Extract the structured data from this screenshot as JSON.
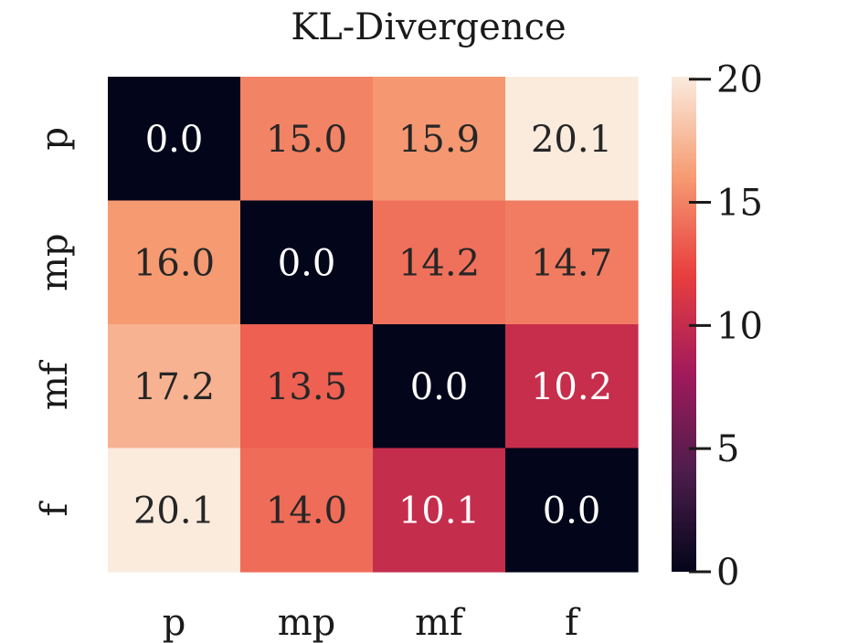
{
  "chart_data": {
    "type": "heatmap",
    "title": "KL-Divergence",
    "x_categories": [
      "p",
      "mp",
      "mf",
      "f"
    ],
    "y_categories": [
      "p",
      "mp",
      "mf",
      "f"
    ],
    "values": [
      [
        0.0,
        15.0,
        15.9,
        20.1
      ],
      [
        16.0,
        0.0,
        14.2,
        14.7
      ],
      [
        17.2,
        13.5,
        0.0,
        10.2
      ],
      [
        20.1,
        14.0,
        10.1,
        0.0
      ]
    ],
    "cell_labels": [
      [
        "0.0",
        "15.0",
        "15.9",
        "20.1"
      ],
      [
        "16.0",
        "0.0",
        "14.2",
        "14.7"
      ],
      [
        "17.2",
        "13.5",
        "0.0",
        "10.2"
      ],
      [
        "20.1",
        "14.0",
        "10.1",
        "0.0"
      ]
    ],
    "colorbar": {
      "range": [
        0,
        20.1
      ],
      "ticks": [
        0,
        5,
        10,
        15,
        20
      ],
      "tick_labels": [
        "0",
        "5",
        "10",
        "15",
        "20"
      ],
      "colormap": [
        "#03051a",
        "#4c1d4b",
        "#a11a5b",
        "#e83f3f",
        "#f69c73",
        "#faebdd"
      ]
    },
    "xlabel": "",
    "ylabel": ""
  }
}
